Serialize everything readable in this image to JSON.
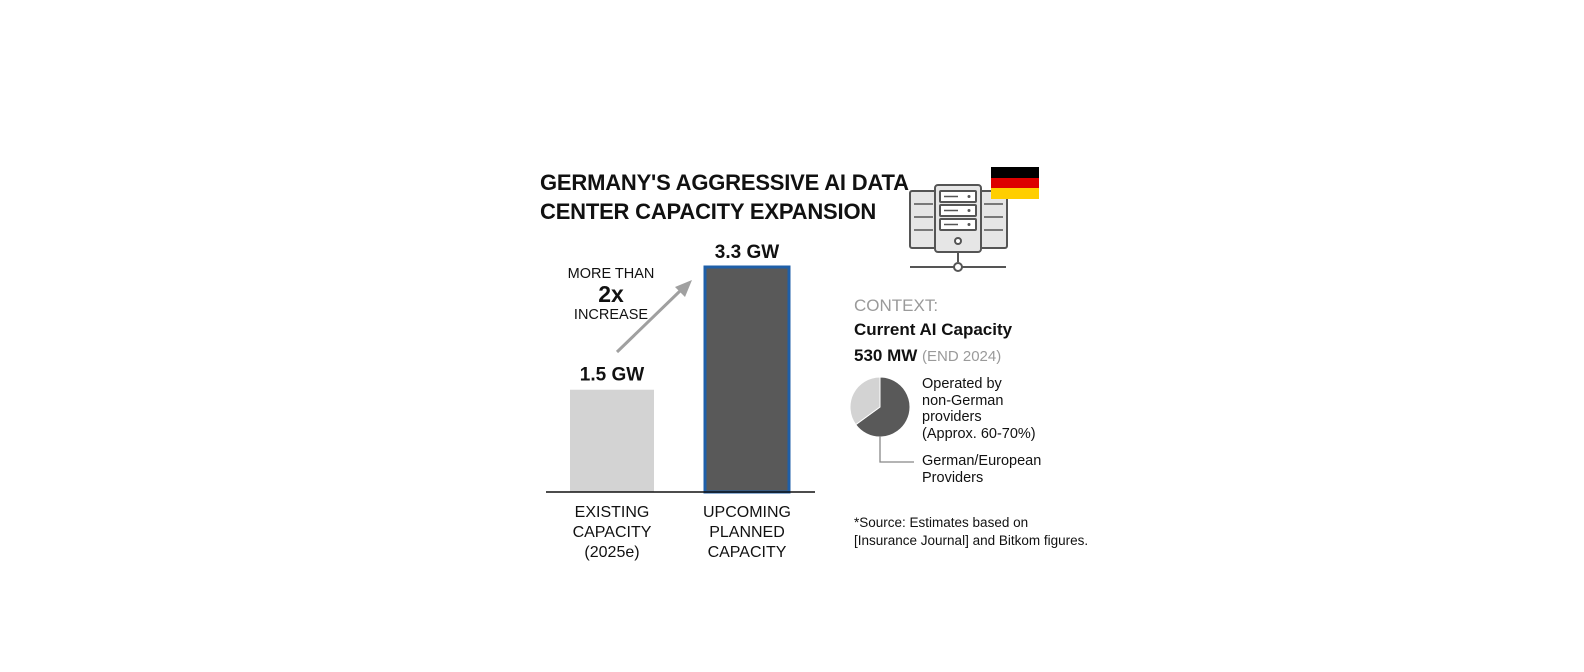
{
  "title": {
    "line1": "GERMANY'S AGGRESSIVE AI DATA",
    "line2": "CENTER CAPACITY EXPANSION"
  },
  "chart_data": [
    {
      "type": "bar",
      "categories": [
        "EXISTING CAPACITY (2025e)",
        "UPCOMING PLANNED CAPACITY"
      ],
      "category_lines": [
        [
          "EXISTING",
          "CAPACITY",
          "(2025e)"
        ],
        [
          "UPCOMING",
          "PLANNED",
          "CAPACITY"
        ]
      ],
      "values": [
        1.5,
        3.3
      ],
      "unit": "GW",
      "value_labels": [
        "1.5 GW",
        "3.3 GW"
      ],
      "colors": [
        "#d3d3d3",
        "#595959"
      ],
      "highlight_border": "#1f5fa8",
      "ylim": [
        0,
        3.3
      ],
      "annotation": {
        "top": "MORE THAN",
        "main": "2x",
        "bottom": "INCREASE"
      },
      "grid": false,
      "legend": "none"
    },
    {
      "type": "pie",
      "slices": [
        {
          "label": "Operated by non-German providers (Approx. 60-70%)",
          "value": 65,
          "color": "#595959"
        },
        {
          "label": "German/European Providers",
          "value": 35,
          "color": "#d3d3d3"
        }
      ]
    }
  ],
  "context": {
    "label": "CONTEXT:",
    "title": "Current AI Capacity",
    "value": "530 MW",
    "date": "(END 2024)"
  },
  "pie_labels": {
    "major": [
      "Operated by",
      "non-German",
      "providers",
      "(Approx. 60-70%)"
    ],
    "minor": [
      "German/European",
      "Providers"
    ]
  },
  "source": {
    "line1": "*Source: Estimates based on",
    "line2": "[Insurance Journal] and Bitkom figures."
  },
  "icons": {
    "server": "server-rack-icon",
    "flag": "germany-flag-icon"
  },
  "colors": {
    "flag_black": "#000000",
    "flag_red": "#dd0000",
    "flag_gold": "#ffce00",
    "icon_fill": "#e6e6e6",
    "icon_stroke": "#555555",
    "arrow": "#a0a0a0"
  }
}
